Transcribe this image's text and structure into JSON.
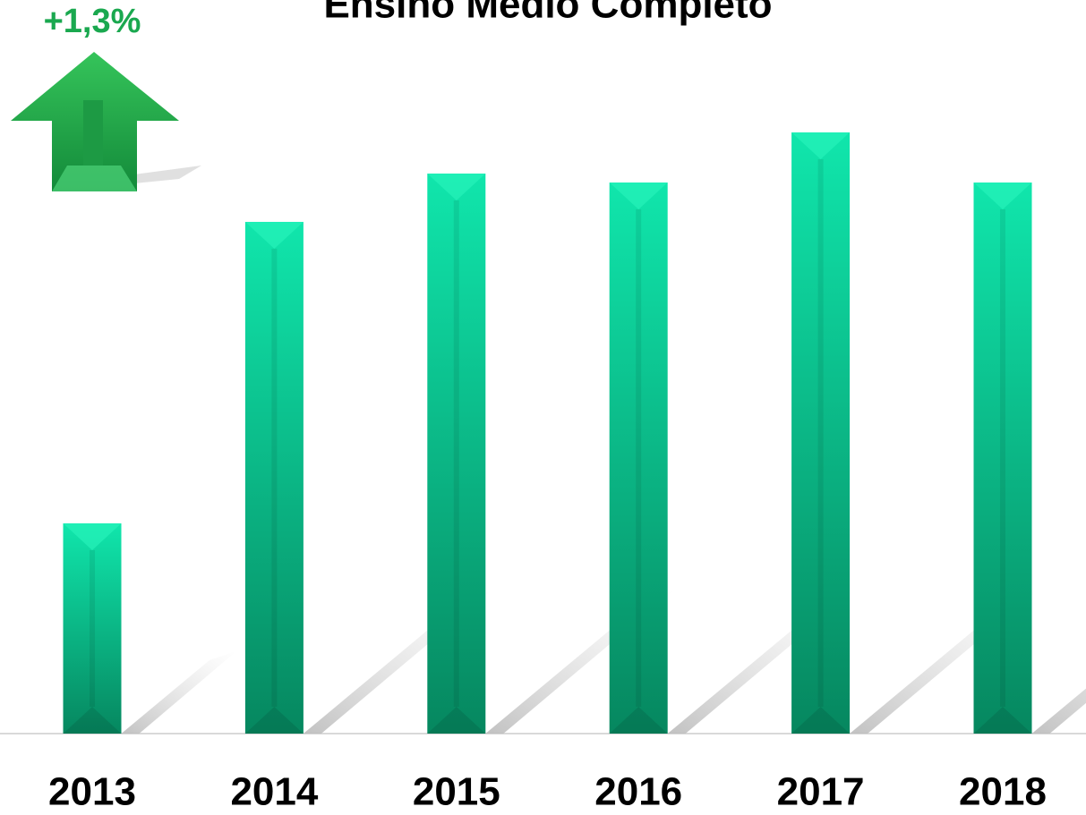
{
  "chart_data": {
    "type": "bar",
    "title": "Ensino Médio Completo",
    "annotation": "+1,3%",
    "categories": [
      "2013",
      "2014",
      "2015",
      "2016",
      "2017",
      "2018"
    ],
    "values": [
      235,
      572,
      626,
      616,
      672,
      616
    ],
    "color": "#0bbf8a",
    "ylim": [
      0,
      700
    ]
  }
}
